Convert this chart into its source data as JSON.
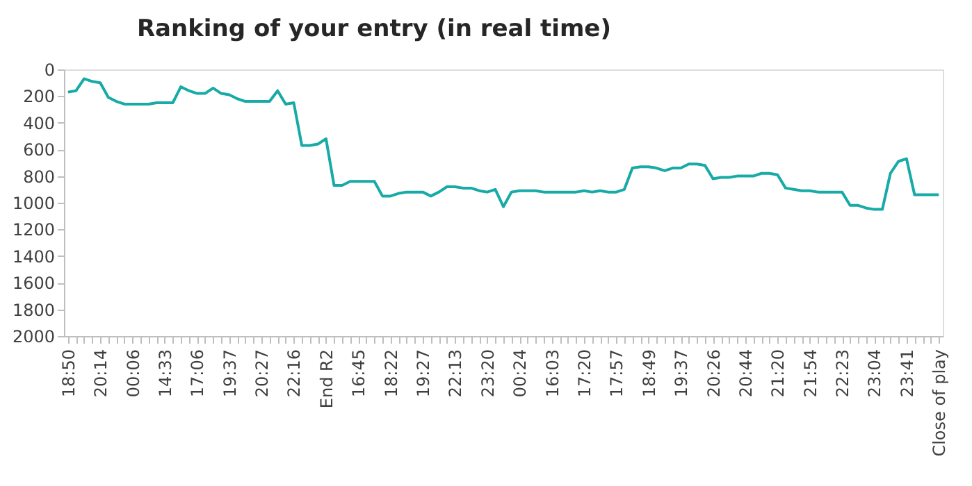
{
  "chart_data": {
    "type": "line",
    "title": "Ranking of your entry (in real time)",
    "categories": [
      "18:50",
      null,
      null,
      null,
      "20:14",
      null,
      null,
      null,
      "00:06",
      null,
      null,
      null,
      "14:33",
      null,
      null,
      null,
      "17:06",
      null,
      null,
      null,
      "19:37",
      null,
      null,
      null,
      "20:27",
      null,
      null,
      null,
      "22:16",
      null,
      null,
      null,
      "End R2",
      null,
      null,
      null,
      "16:45",
      null,
      null,
      null,
      "18:22",
      null,
      null,
      null,
      "19:27",
      null,
      null,
      null,
      "22:13",
      null,
      null,
      null,
      "23:20",
      null,
      null,
      null,
      "00:24",
      null,
      null,
      null,
      "16:03",
      null,
      null,
      null,
      "17:20",
      null,
      null,
      null,
      "17:57",
      null,
      null,
      null,
      "18:49",
      null,
      null,
      null,
      "19:37",
      null,
      null,
      null,
      "20:26",
      null,
      null,
      null,
      "20:44",
      null,
      null,
      null,
      "21:20",
      null,
      null,
      null,
      "21:54",
      null,
      null,
      null,
      "22:23",
      null,
      null,
      null,
      "23:04",
      null,
      null,
      null,
      "23:41",
      null,
      null,
      null,
      "Close of play"
    ],
    "series": [
      {
        "color": "#17aaa6",
        "values": [
          170,
          160,
          70,
          90,
          100,
          210,
          240,
          260,
          260,
          260,
          260,
          250,
          250,
          250,
          130,
          160,
          180,
          180,
          140,
          180,
          190,
          220,
          240,
          240,
          240,
          240,
          160,
          260,
          250,
          570,
          570,
          560,
          520,
          870,
          870,
          840,
          840,
          840,
          840,
          950,
          950,
          930,
          920,
          920,
          920,
          950,
          920,
          880,
          880,
          890,
          890,
          910,
          920,
          900,
          1030,
          920,
          910,
          910,
          910,
          920,
          920,
          920,
          920,
          920,
          910,
          920,
          910,
          920,
          920,
          900,
          740,
          730,
          730,
          740,
          760,
          740,
          740,
          710,
          710,
          720,
          820,
          810,
          810,
          800,
          800,
          800,
          780,
          780,
          790,
          890,
          900,
          910,
          910,
          920,
          920,
          920,
          920,
          1020,
          1020,
          1040,
          1050,
          1050,
          780,
          690,
          670,
          940,
          940,
          940,
          940
        ]
      }
    ],
    "ylim": [
      2000,
      0
    ],
    "yticks": [
      0,
      200,
      400,
      600,
      800,
      1000,
      1200,
      1400,
      1600,
      1800,
      2000
    ],
    "grid": false,
    "marker": "none",
    "line_style": "solid"
  }
}
